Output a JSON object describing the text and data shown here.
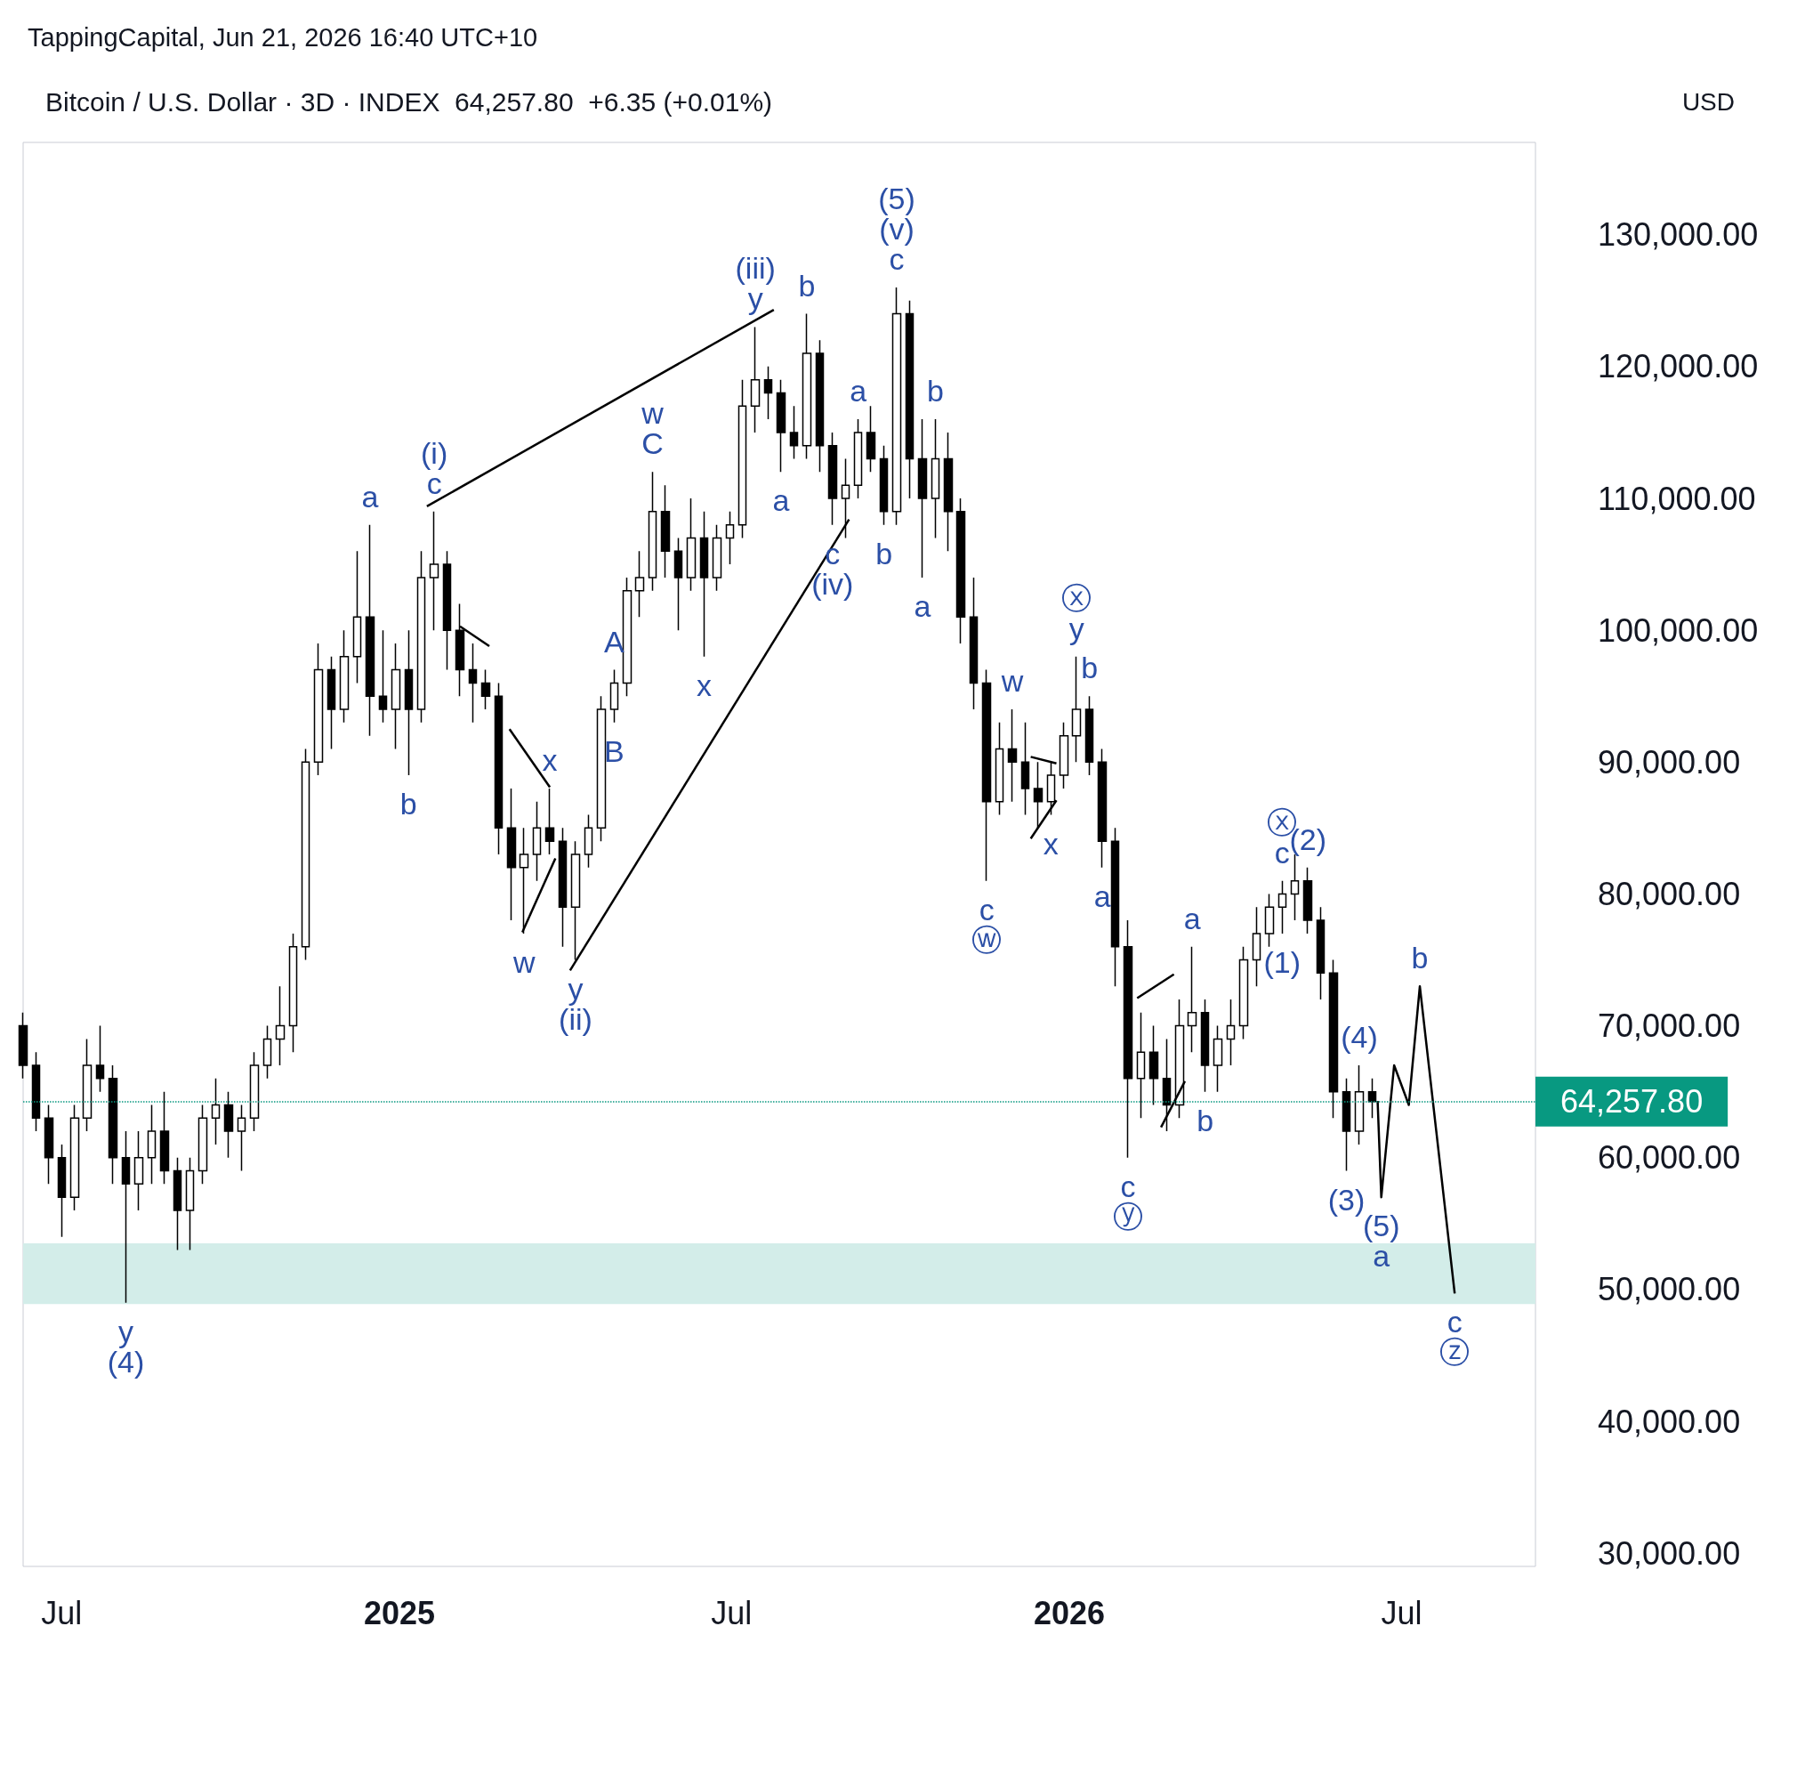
{
  "chart_data": {
    "type": "candlestick",
    "title": "Bitcoin / U.S. Dollar · 3D · INDEX  64,257.80  +6.35 (+0.01%)",
    "subtitle": "TappingCapital, Jun 21, 2026 16:40 UTC+10",
    "xlim": [
      "2024-06-10",
      "2026-09-12"
    ],
    "ylim": [
      29000,
      137000
    ],
    "xticks": [
      {
        "value": "2024-07-01",
        "label": "Jul"
      },
      {
        "value": "2025-01-01",
        "label": "2025"
      },
      {
        "value": "2025-07-01",
        "label": "Jul"
      },
      {
        "value": "2026-01-01",
        "label": "2026"
      },
      {
        "value": "2026-07-01",
        "label": "Jul"
      }
    ],
    "yticks": [
      {
        "value": 30000,
        "label": "30,000.00"
      },
      {
        "value": 40000,
        "label": "40,000.00"
      },
      {
        "value": 50000,
        "label": "50,000.00"
      },
      {
        "value": 60000,
        "label": "60,000.00"
      },
      {
        "value": 70000,
        "label": "70,000.00"
      },
      {
        "value": 80000,
        "label": "80,000.00"
      },
      {
        "value": 90000,
        "label": "90,000.00"
      },
      {
        "value": 100000,
        "label": "100,000.00"
      },
      {
        "value": 110000,
        "label": "110,000.00"
      },
      {
        "value": 120000,
        "label": "120,000.00"
      },
      {
        "value": 130000,
        "label": "130,000.00"
      }
    ],
    "grid": false,
    "marker": "none",
    "series": [
      {
        "color": "#000000",
        "x": [
          "2024-06-10",
          "2024-06-17",
          "2024-06-24",
          "2024-07-01",
          "2024-07-08",
          "2024-07-15",
          "2024-07-22",
          "2024-07-29",
          "2024-08-05",
          "2024-08-12",
          "2024-08-19",
          "2024-08-26",
          "2024-09-02",
          "2024-09-09",
          "2024-09-16",
          "2024-09-23",
          "2024-09-30",
          "2024-10-07",
          "2024-10-14",
          "2024-10-21",
          "2024-10-28",
          "2024-11-04",
          "2024-11-11",
          "2024-11-18",
          "2024-11-25",
          "2024-12-02",
          "2024-12-09",
          "2024-12-16",
          "2024-12-23",
          "2024-12-30",
          "2025-01-06",
          "2025-01-13",
          "2025-01-20",
          "2025-01-27",
          "2025-02-03",
          "2025-02-10",
          "2025-02-17",
          "2025-02-24",
          "2025-03-03",
          "2025-03-10",
          "2025-03-17",
          "2025-03-24",
          "2025-03-31",
          "2025-04-07",
          "2025-04-14",
          "2025-04-21",
          "2025-04-28",
          "2025-05-05",
          "2025-05-12",
          "2025-05-19",
          "2025-05-26",
          "2025-06-02",
          "2025-06-09",
          "2025-06-16",
          "2025-06-23",
          "2025-06-30",
          "2025-07-07",
          "2025-07-14",
          "2025-07-21",
          "2025-07-28",
          "2025-08-04",
          "2025-08-11",
          "2025-08-18",
          "2025-08-25",
          "2025-09-01",
          "2025-09-08",
          "2025-09-15",
          "2025-09-22",
          "2025-09-29",
          "2025-10-06",
          "2025-10-13",
          "2025-10-20",
          "2025-10-27",
          "2025-11-03",
          "2025-11-10",
          "2025-11-17",
          "2025-11-24",
          "2025-12-01",
          "2025-12-08",
          "2025-12-15",
          "2025-12-22",
          "2025-12-29",
          "2026-01-05",
          "2026-01-12",
          "2026-01-19",
          "2026-01-26",
          "2026-02-02",
          "2026-02-09",
          "2026-02-16",
          "2026-02-23",
          "2026-03-02",
          "2026-03-09",
          "2026-03-16",
          "2026-03-23",
          "2026-03-30",
          "2026-04-06",
          "2026-04-13",
          "2026-04-20",
          "2026-04-27",
          "2026-05-04",
          "2026-05-11",
          "2026-05-18",
          "2026-05-25",
          "2026-06-01",
          "2026-06-08",
          "2026-06-15"
        ],
        "ohlc": [
          [
            70000,
            71000,
            66000,
            67000
          ],
          [
            67000,
            68000,
            62000,
            63000
          ],
          [
            63000,
            64000,
            58000,
            60000
          ],
          [
            60000,
            61000,
            54000,
            57000
          ],
          [
            57000,
            64000,
            56000,
            63000
          ],
          [
            63000,
            69000,
            62000,
            67000
          ],
          [
            67000,
            70000,
            65000,
            66000
          ],
          [
            66000,
            67000,
            58000,
            60000
          ],
          [
            60000,
            62000,
            49000,
            58000
          ],
          [
            58000,
            62000,
            56000,
            60000
          ],
          [
            60000,
            64000,
            58000,
            62000
          ],
          [
            62000,
            65000,
            58000,
            59000
          ],
          [
            59000,
            60000,
            53000,
            56000
          ],
          [
            56000,
            60000,
            53000,
            59000
          ],
          [
            59000,
            64000,
            58000,
            63000
          ],
          [
            63000,
            66000,
            61000,
            64000
          ],
          [
            64000,
            65000,
            60000,
            62000
          ],
          [
            62000,
            64000,
            59000,
            63000
          ],
          [
            63000,
            68000,
            62000,
            67000
          ],
          [
            67000,
            70000,
            66000,
            69000
          ],
          [
            69000,
            73000,
            67000,
            70000
          ],
          [
            70000,
            77000,
            68000,
            76000
          ],
          [
            76000,
            91000,
            75000,
            90000
          ],
          [
            90000,
            99000,
            89000,
            97000
          ],
          [
            97000,
            98000,
            91000,
            94000
          ],
          [
            94000,
            100000,
            93000,
            98000
          ],
          [
            98000,
            106000,
            96000,
            101000
          ],
          [
            101000,
            108000,
            92000,
            95000
          ],
          [
            95000,
            100000,
            93000,
            94000
          ],
          [
            94000,
            99000,
            91000,
            97000
          ],
          [
            97000,
            100000,
            89000,
            94000
          ],
          [
            94000,
            106000,
            93000,
            104000
          ],
          [
            104000,
            109000,
            100000,
            105000
          ],
          [
            105000,
            106000,
            97000,
            100000
          ],
          [
            100000,
            102000,
            95000,
            97000
          ],
          [
            97000,
            99000,
            93000,
            96000
          ],
          [
            96000,
            97000,
            94000,
            95000
          ],
          [
            95000,
            96000,
            83000,
            85000
          ],
          [
            85000,
            88000,
            78000,
            82000
          ],
          [
            82000,
            85000,
            77000,
            83000
          ],
          [
            83000,
            87000,
            81000,
            85000
          ],
          [
            85000,
            88000,
            83000,
            84000
          ],
          [
            84000,
            85000,
            76000,
            79000
          ],
          [
            79000,
            84000,
            75000,
            83000
          ],
          [
            83000,
            86000,
            82000,
            85000
          ],
          [
            85000,
            95000,
            84000,
            94000
          ],
          [
            94000,
            97000,
            93000,
            96000
          ],
          [
            96000,
            104000,
            95000,
            103000
          ],
          [
            103000,
            106000,
            101000,
            104000
          ],
          [
            104000,
            112000,
            103000,
            109000
          ],
          [
            109000,
            111000,
            104000,
            106000
          ],
          [
            106000,
            107000,
            100000,
            104000
          ],
          [
            104000,
            110000,
            103000,
            107000
          ],
          [
            107000,
            109000,
            98000,
            104000
          ],
          [
            104000,
            108000,
            103000,
            107000
          ],
          [
            107000,
            109000,
            105000,
            108000
          ],
          [
            108000,
            119000,
            107000,
            117000
          ],
          [
            117000,
            123000,
            115000,
            119000
          ],
          [
            119000,
            120000,
            116000,
            118000
          ],
          [
            118000,
            119000,
            112000,
            115000
          ],
          [
            115000,
            117000,
            113000,
            114000
          ],
          [
            114000,
            124000,
            113000,
            121000
          ],
          [
            121000,
            122000,
            112000,
            114000
          ],
          [
            114000,
            115000,
            108000,
            110000
          ],
          [
            110000,
            113000,
            107000,
            111000
          ],
          [
            111000,
            116000,
            110000,
            115000
          ],
          [
            115000,
            117000,
            112000,
            113000
          ],
          [
            113000,
            114000,
            108000,
            109000
          ],
          [
            109000,
            126000,
            108000,
            124000
          ],
          [
            124000,
            125000,
            110000,
            113000
          ],
          [
            113000,
            116000,
            104000,
            110000
          ],
          [
            110000,
            116000,
            107000,
            113000
          ],
          [
            113000,
            115000,
            106000,
            109000
          ],
          [
            109000,
            110000,
            99000,
            101000
          ],
          [
            101000,
            104000,
            94000,
            96000
          ],
          [
            96000,
            97000,
            81000,
            87000
          ],
          [
            87000,
            93000,
            86000,
            91000
          ],
          [
            91000,
            94000,
            87000,
            90000
          ],
          [
            90000,
            93000,
            86000,
            88000
          ],
          [
            88000,
            90000,
            85000,
            87000
          ],
          [
            87000,
            90000,
            86000,
            89000
          ],
          [
            89000,
            93000,
            88000,
            92000
          ],
          [
            92000,
            98000,
            90000,
            94000
          ],
          [
            94000,
            95000,
            89000,
            90000
          ],
          [
            90000,
            91000,
            82000,
            84000
          ],
          [
            84000,
            85000,
            73000,
            76000
          ],
          [
            76000,
            78000,
            60000,
            66000
          ],
          [
            66000,
            71000,
            63000,
            68000
          ],
          [
            68000,
            70000,
            64000,
            66000
          ],
          [
            66000,
            69000,
            62000,
            64000
          ],
          [
            64000,
            72000,
            63000,
            70000
          ],
          [
            70000,
            76000,
            68000,
            71000
          ],
          [
            71000,
            72000,
            65000,
            67000
          ],
          [
            67000,
            70000,
            65000,
            69000
          ],
          [
            69000,
            72000,
            67000,
            70000
          ],
          [
            70000,
            76000,
            69000,
            75000
          ],
          [
            75000,
            79000,
            73000,
            77000
          ],
          [
            77000,
            80000,
            76000,
            79000
          ],
          [
            79000,
            81000,
            77000,
            80000
          ],
          [
            80000,
            83000,
            78000,
            81000
          ],
          [
            81000,
            82000,
            77000,
            78000
          ],
          [
            78000,
            79000,
            72000,
            74000
          ],
          [
            74000,
            75000,
            63000,
            65000
          ],
          [
            65000,
            66000,
            59000,
            62000
          ],
          [
            62000,
            67000,
            61000,
            65000
          ],
          [
            65000,
            66000,
            63000,
            64257.8
          ]
        ]
      },
      {
        "type": "line",
        "color": "#000000",
        "x": [
          "2025-01-16",
          "2025-07-24"
        ],
        "values": [
          109400,
          124300
        ]
      },
      {
        "type": "line",
        "color": "#000000",
        "x": [
          "2025-04-04",
          "2025-09-03"
        ],
        "values": [
          74200,
          108400
        ]
      },
      {
        "type": "line",
        "color": "#000000",
        "x": [
          "2025-02-03",
          "2025-02-19"
        ],
        "values": [
          100300,
          98800
        ]
      },
      {
        "type": "line",
        "color": "#000000",
        "x": [
          "2025-03-02",
          "2025-03-24"
        ],
        "values": [
          92500,
          88100
        ]
      },
      {
        "type": "line",
        "color": "#000000",
        "x": [
          "2025-03-09",
          "2025-03-27"
        ],
        "values": [
          77100,
          82700
        ]
      },
      {
        "type": "line",
        "color": "#000000",
        "x": [
          "2025-12-11",
          "2025-12-25"
        ],
        "values": [
          90400,
          89900
        ]
      },
      {
        "type": "line",
        "color": "#000000",
        "x": [
          "2025-12-11",
          "2025-12-25"
        ],
        "values": [
          84200,
          87100
        ]
      },
      {
        "type": "line",
        "color": "#000000",
        "x": [
          "2026-02-07",
          "2026-02-27"
        ],
        "values": [
          72100,
          73900
        ]
      },
      {
        "type": "line",
        "color": "#000000",
        "x": [
          "2026-02-20",
          "2026-03-05"
        ],
        "values": [
          62300,
          65800
        ]
      },
      {
        "type": "line",
        "color": "#000000",
        "x": [
          "2026-06-18",
          "2026-06-20",
          "2026-06-27",
          "2026-07-05",
          "2026-07-11",
          "2026-07-30"
        ],
        "values": [
          64300,
          57000,
          67000,
          64000,
          73000,
          49700
        ]
      }
    ],
    "ref_lines": [
      {
        "axis": "y",
        "value": 64257.8,
        "label": "64,257.80",
        "color": "#089981"
      }
    ],
    "bands": [
      {
        "axis": "y",
        "from": 48900,
        "to": 53500,
        "color": "#d3ede9"
      }
    ],
    "annotations": [
      "USD",
      {
        "text": "y",
        "x": "2024-08-05",
        "y": 49000
      },
      {
        "text": "(4)",
        "x": "2024-08-05",
        "y": 49000
      },
      {
        "text": "a",
        "x": "2024-12-16",
        "y": 108000
      },
      {
        "text": "b",
        "x": "2025-01-06",
        "y": 89000
      },
      {
        "text": "c",
        "x": "2025-01-20",
        "y": 109000
      },
      {
        "text": "(i)",
        "x": "2025-01-20",
        "y": 109000
      },
      {
        "text": "w",
        "x": "2025-03-10",
        "y": 77000
      },
      {
        "text": "x",
        "x": "2025-03-24",
        "y": 88000
      },
      {
        "text": "y",
        "x": "2025-04-07",
        "y": 75000
      },
      {
        "text": "(ii)",
        "x": "2025-04-07",
        "y": 75000
      },
      {
        "text": "A",
        "x": "2025-04-28",
        "y": 97000
      },
      {
        "text": "B",
        "x": "2025-04-28",
        "y": 93000
      },
      {
        "text": "C",
        "x": "2025-05-19",
        "y": 112000
      },
      {
        "text": "w",
        "x": "2025-05-19",
        "y": 112000
      },
      {
        "text": "x",
        "x": "2025-06-16",
        "y": 98000
      },
      {
        "text": "y",
        "x": "2025-07-14",
        "y": 123000
      },
      {
        "text": "(iii)",
        "x": "2025-07-14",
        "y": 123000
      },
      {
        "text": "a",
        "x": "2025-07-28",
        "y": 112000
      },
      {
        "text": "b",
        "x": "2025-08-11",
        "y": 124000
      },
      {
        "text": "c",
        "x": "2025-08-25",
        "y": 108000
      },
      {
        "text": "(iv)",
        "x": "2025-08-25",
        "y": 108000
      },
      {
        "text": "a",
        "x": "2025-09-08",
        "y": 116000
      },
      {
        "text": "b",
        "x": "2025-09-22",
        "y": 108000
      },
      {
        "text": "c",
        "x": "2025-09-29",
        "y": 126000
      },
      {
        "text": "(v)",
        "x": "2025-09-29",
        "y": 126000
      },
      {
        "text": "(5)",
        "x": "2025-09-29",
        "y": 126000
      },
      {
        "text": "a",
        "x": "2025-10-13",
        "y": 104000
      },
      {
        "text": "b",
        "x": "2025-10-20",
        "y": 116000
      },
      {
        "text": "c",
        "x": "2025-11-17",
        "y": 81000
      },
      {
        "text": "ⓦ",
        "x": "2025-11-17",
        "y": 81000
      },
      {
        "text": "w",
        "x": "2025-12-01",
        "y": 94000
      },
      {
        "text": "x",
        "x": "2025-12-22",
        "y": 86000
      },
      {
        "text": "y",
        "x": "2026-01-05",
        "y": 98000
      },
      {
        "text": "ⓧ",
        "x": "2026-01-05",
        "y": 98000
      },
      {
        "text": "a",
        "x": "2026-01-19",
        "y": 82000
      },
      {
        "text": "b",
        "x": "2026-01-12",
        "y": 95000
      },
      {
        "text": "c",
        "x": "2026-02-02",
        "y": 60000
      },
      {
        "text": "ⓨ",
        "x": "2026-02-02",
        "y": 60000
      },
      {
        "text": "a",
        "x": "2026-03-09",
        "y": 76000
      },
      {
        "text": "b",
        "x": "2026-03-16",
        "y": 65000
      },
      {
        "text": "c",
        "x": "2026-04-27",
        "y": 81000
      },
      {
        "text": "ⓧ",
        "x": "2026-04-27",
        "y": 81000
      },
      {
        "text": "(2)",
        "x": "2026-05-11",
        "y": 82000
      },
      {
        "text": "(1)",
        "x": "2026-04-27",
        "y": 77000
      },
      {
        "text": "(3)",
        "x": "2026-06-01",
        "y": 59000
      },
      {
        "text": "(4)",
        "x": "2026-06-08",
        "y": 67000
      },
      {
        "text": "(5)",
        "x": "2026-06-20",
        "y": 57000
      },
      {
        "text": "a",
        "x": "2026-06-20",
        "y": 57000
      },
      {
        "text": "b",
        "x": "2026-07-11",
        "y": 73000
      },
      {
        "text": "c",
        "x": "2026-07-30",
        "y": 49700
      },
      {
        "text": "ⓩ",
        "x": "2026-07-30",
        "y": 49700
      }
    ]
  }
}
